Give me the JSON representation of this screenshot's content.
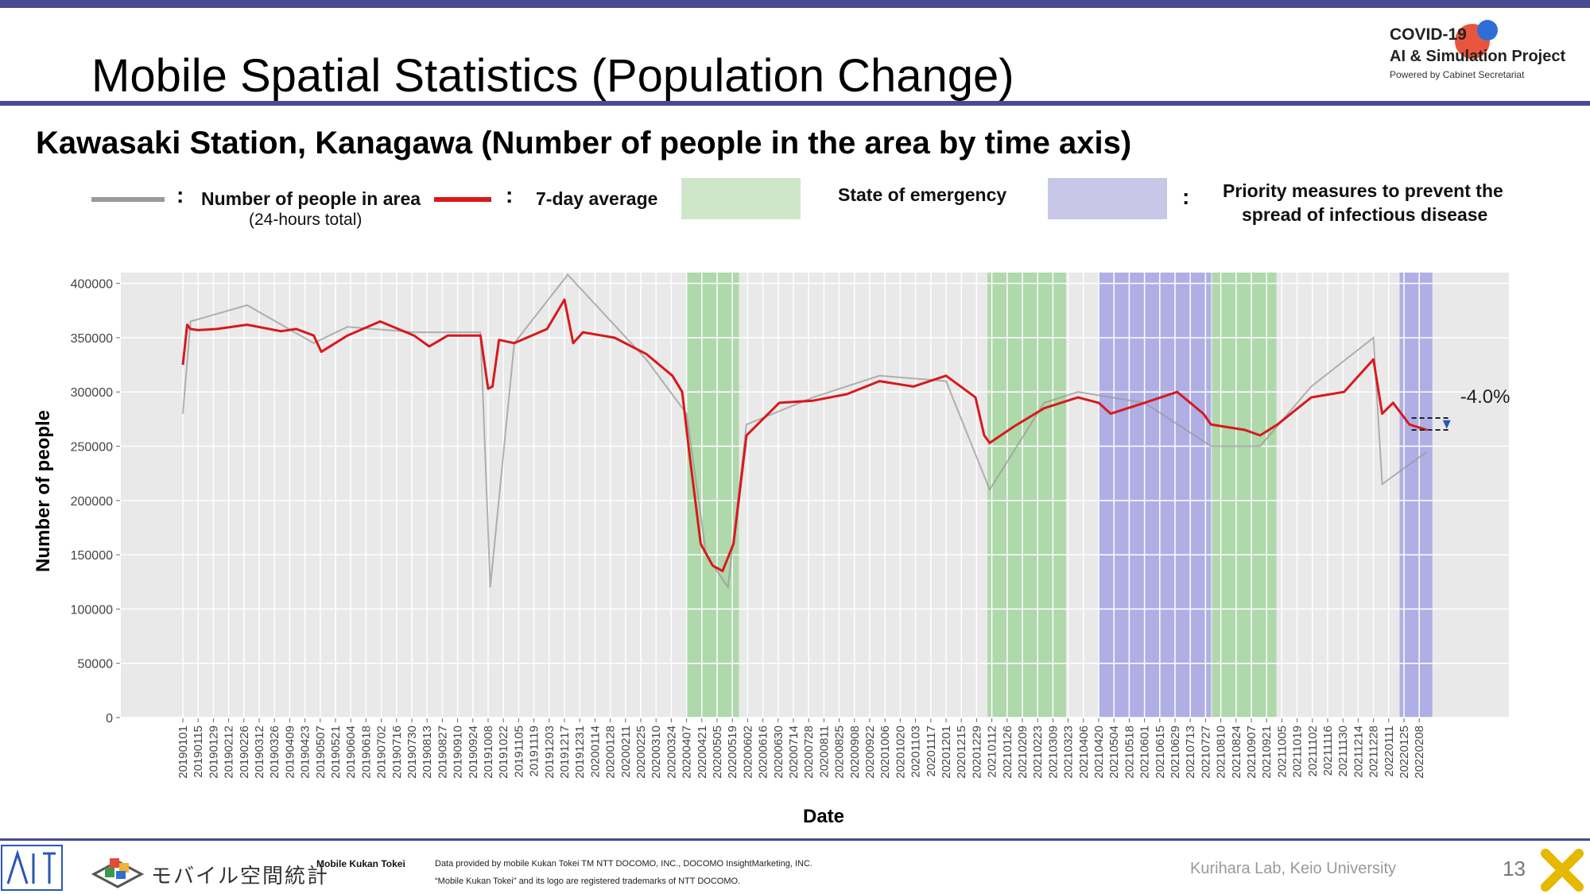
{
  "header": {
    "title": "Mobile Spatial Statistics (Population Change)",
    "logo_line1": "COVID-19",
    "logo_line2": "AI & Simulation Project",
    "logo_line3": "Powered by Cabinet Secretariat"
  },
  "subtitle": "Kawasaki Station, Kanagawa (Number of people in the area by time axis)",
  "legend": {
    "colon": ":",
    "raw_label": "Number of people in area",
    "raw_sublabel": "(24-hours total)",
    "avg_label": "7-day average",
    "emergency_label": "State of emergency",
    "priority_label_1": "Priority measures to prevent the",
    "priority_label_2": "spread of infectious disease"
  },
  "colors": {
    "raw": "#9a9a9a",
    "avg": "#d7191c",
    "emergency": "#a9d6a4",
    "priority": "#a9a8e6",
    "plot_bg": "#e9e9e9"
  },
  "chart_data": {
    "type": "line",
    "xlabel": "Date",
    "ylabel": "Number of people",
    "ylim": [
      0,
      410000
    ],
    "y_ticks": [
      0,
      50000,
      100000,
      150000,
      200000,
      250000,
      300000,
      350000,
      400000
    ],
    "x_tick_labels": [
      "20190101",
      "20190115",
      "20190129",
      "20190212",
      "20190226",
      "20190312",
      "20190326",
      "20190409",
      "20190423",
      "20190507",
      "20190521",
      "20190604",
      "20190618",
      "20190702",
      "20190716",
      "20190730",
      "20190813",
      "20190827",
      "20190910",
      "20190924",
      "20191008",
      "20191022",
      "20191105",
      "20191119",
      "20191203",
      "20191217",
      "20191231",
      "20200114",
      "20200128",
      "20200211",
      "20200225",
      "20200310",
      "20200324",
      "20200407",
      "20200421",
      "20200505",
      "20200519",
      "20200602",
      "20200616",
      "20200630",
      "20200714",
      "20200728",
      "20200811",
      "20200825",
      "20200908",
      "20200922",
      "20201006",
      "20201020",
      "20201103",
      "20201117",
      "20201201",
      "20201215",
      "20201229",
      "20210112",
      "20210126",
      "20210209",
      "20210223",
      "20210309",
      "20210323",
      "20210406",
      "20210420",
      "20210504",
      "20210518",
      "20210601",
      "20210615",
      "20210629",
      "20210713",
      "20210727",
      "20210810",
      "20210824",
      "20210907",
      "20210921",
      "20211005",
      "20211019",
      "20211102",
      "20211116",
      "20211130",
      "20211214",
      "20211228",
      "20220111",
      "20220125",
      "20220208"
    ],
    "grid": true,
    "shaded_periods": [
      {
        "type": "emergency",
        "start": "20200407",
        "end": "20200525"
      },
      {
        "type": "emergency",
        "start": "20210108",
        "end": "20210321"
      },
      {
        "type": "priority",
        "start": "20210420",
        "end": "20210801"
      },
      {
        "type": "emergency",
        "start": "20210802",
        "end": "20210930"
      },
      {
        "type": "priority",
        "start": "20220121",
        "end": "20220220"
      }
    ],
    "annotation": "-4.0%",
    "series": [
      {
        "name": "7-day average",
        "x": [
          "20190101",
          "20190105",
          "20190108",
          "20190115",
          "20190201",
          "20190301",
          "20190401",
          "20190415",
          "20190501",
          "20190508",
          "20190601",
          "20190701",
          "20190801",
          "20190815",
          "20190901",
          "20191001",
          "20191008",
          "20191012",
          "20191018",
          "20191101",
          "20191201",
          "20191217",
          "20191225",
          "20200103",
          "20200201",
          "20200301",
          "20200325",
          "20200403",
          "20200410",
          "20200420",
          "20200501",
          "20200510",
          "20200520",
          "20200601",
          "20200701",
          "20200801",
          "20200901",
          "20201001",
          "20201101",
          "20201201",
          "20201228",
          "20210105",
          "20210110",
          "20210201",
          "20210301",
          "20210401",
          "20210420",
          "20210501",
          "20210601",
          "20210701",
          "20210725",
          "20210801",
          "20210901",
          "20210915",
          "20211001",
          "20211101",
          "20211201",
          "20211228",
          "20220105",
          "20220115",
          "20220130",
          "20220215"
        ],
        "values": [
          325000,
          362000,
          358000,
          357000,
          358000,
          362000,
          356000,
          358000,
          352000,
          337000,
          352000,
          365000,
          352000,
          342000,
          352000,
          352000,
          303000,
          305000,
          348000,
          345000,
          358000,
          385000,
          345000,
          355000,
          350000,
          335000,
          315000,
          300000,
          240000,
          160000,
          140000,
          135000,
          160000,
          260000,
          290000,
          292000,
          298000,
          310000,
          305000,
          315000,
          295000,
          260000,
          253000,
          268000,
          285000,
          295000,
          290000,
          280000,
          290000,
          300000,
          280000,
          270000,
          265000,
          260000,
          270000,
          295000,
          300000,
          330000,
          280000,
          290000,
          270000,
          265000
        ]
      },
      {
        "name": "Number of people in area",
        "x": [
          "20190101",
          "20190108",
          "20190301",
          "20190501",
          "20190601",
          "20190801",
          "20191001",
          "20191010",
          "20191101",
          "20191220",
          "20200301",
          "20200407",
          "20200425",
          "20200515",
          "20200601",
          "20200801",
          "20201001",
          "20201201",
          "20210110",
          "20210301",
          "20210401",
          "20210601",
          "20210801",
          "20210915",
          "20211101",
          "20211228",
          "20220105",
          "20220215"
        ],
        "values": [
          280000,
          365000,
          380000,
          345000,
          360000,
          355000,
          355000,
          120000,
          345000,
          408000,
          330000,
          280000,
          150000,
          120000,
          270000,
          295000,
          315000,
          310000,
          210000,
          290000,
          300000,
          290000,
          250000,
          250000,
          305000,
          350000,
          215000,
          245000
        ]
      }
    ]
  },
  "footer": {
    "kanji_logo": "モバイル空間統計",
    "brand": "Mobile Kukan Tokei",
    "credit_1": "Data provided by mobile Kukan Tokei TM NTT DOCOMO, INC., DOCOMO InsightMarketing, INC.",
    "credit_2": "“Mobile Kukan Tokei” and its logo are registered trademarks of NTT DOCOMO.",
    "lab": "Kurihara Lab, Keio University",
    "page": "13"
  }
}
